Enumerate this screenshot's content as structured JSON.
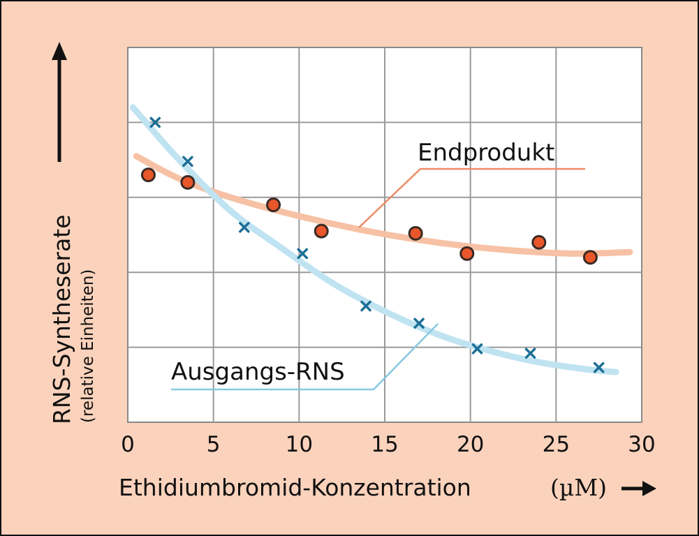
{
  "chart_data": {
    "type": "scatter",
    "xlabel": "Ethidiumbromid-Konzentration",
    "xunit": "(µM)",
    "ylabel": "RNS-Syntheserate",
    "ylabel_sub": "(relative Einheiten)",
    "xlim": [
      0,
      30
    ],
    "ylim": [
      0,
      5
    ],
    "x_ticks": [
      "0",
      "5",
      "10",
      "15",
      "20",
      "25",
      "30"
    ],
    "grid": true,
    "background_color": "#fbd2bb",
    "plot_background": "#ffffff",
    "grid_color": "#9a9a9a",
    "series": [
      {
        "name": "Endprodukt",
        "marker": "circle",
        "marker_color": "#e8562a",
        "curve_color": "#f6c1a4",
        "leader_color": "#ec8b66",
        "points": [
          [
            1.2,
            3.3
          ],
          [
            3.5,
            3.2
          ],
          [
            8.5,
            2.9
          ],
          [
            11.3,
            2.55
          ],
          [
            16.8,
            2.52
          ],
          [
            19.8,
            2.25
          ],
          [
            24,
            2.4
          ],
          [
            27,
            2.2
          ]
        ],
        "curve": [
          [
            0.5,
            3.55
          ],
          [
            3,
            3.25
          ],
          [
            6,
            3.0
          ],
          [
            10,
            2.75
          ],
          [
            14,
            2.55
          ],
          [
            18,
            2.4
          ],
          [
            22,
            2.3
          ],
          [
            26,
            2.25
          ],
          [
            29.3,
            2.27
          ]
        ]
      },
      {
        "name": "Ausgangs-RNS",
        "marker": "x",
        "marker_color": "#1c6f96",
        "curve_color": "#bfe3f1",
        "leader_color": "#86c8e0",
        "points": [
          [
            1.6,
            4.0
          ],
          [
            3.5,
            3.48
          ],
          [
            6.8,
            2.6
          ],
          [
            10.2,
            2.25
          ],
          [
            13.9,
            1.55
          ],
          [
            17,
            1.32
          ],
          [
            20.4,
            0.98
          ],
          [
            23.5,
            0.92
          ],
          [
            27.5,
            0.73
          ]
        ],
        "curve": [
          [
            0.3,
            4.2
          ],
          [
            3,
            3.5
          ],
          [
            6,
            2.82
          ],
          [
            9,
            2.32
          ],
          [
            12,
            1.85
          ],
          [
            15,
            1.48
          ],
          [
            18,
            1.18
          ],
          [
            21,
            0.96
          ],
          [
            24,
            0.8
          ],
          [
            27,
            0.7
          ],
          [
            28.5,
            0.67
          ]
        ]
      }
    ]
  }
}
